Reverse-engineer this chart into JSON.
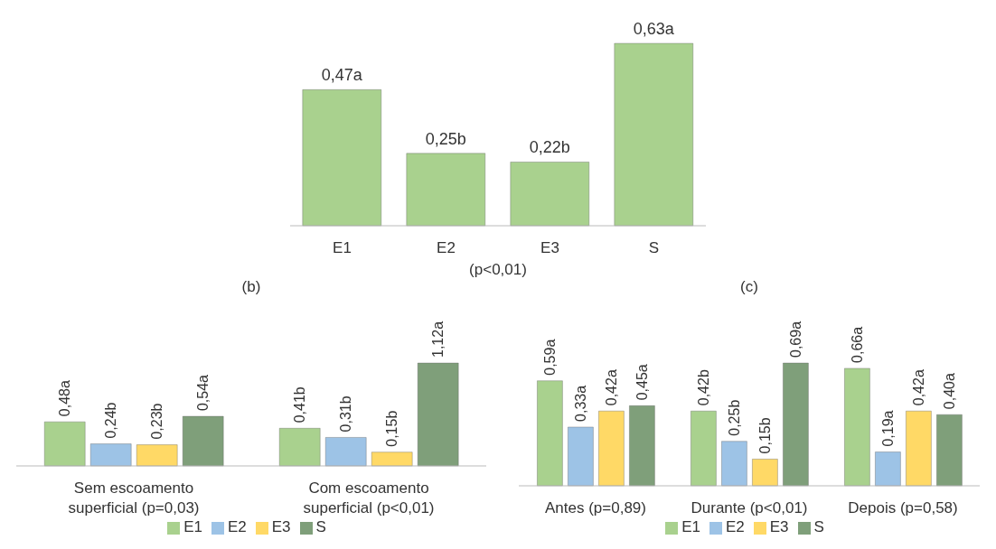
{
  "chart_data": [
    {
      "type": "bar",
      "categories": [
        "E1",
        "E2",
        "E3",
        "S"
      ],
      "xlabel": "(p<0,01)",
      "values": [
        0.47,
        0.25,
        0.22,
        0.63
      ],
      "color": "#a9d18e",
      "value_labels": [
        "0,47a",
        "0,25b",
        "0,22b",
        "0,63a"
      ],
      "legend": false
    },
    {
      "type": "bar",
      "title": "(b)",
      "categories": [
        "Sem escoamento superficial (p=0,03)",
        "Com escoamento superficial (p<0,01)"
      ],
      "legend": "bottom",
      "series": [
        {
          "name": "E1",
          "color": "#a9d18e",
          "values": [
            0.48,
            0.41
          ],
          "value_labels": [
            "0,48a",
            "0,41b"
          ]
        },
        {
          "name": "E2",
          "color": "#9dc3e6",
          "values": [
            0.24,
            0.31
          ],
          "value_labels": [
            "0,24b",
            "0,31b"
          ]
        },
        {
          "name": "E3",
          "color": "#ffd966",
          "values": [
            0.23,
            0.15
          ],
          "value_labels": [
            "0,23b",
            "0,15b"
          ]
        },
        {
          "name": "S",
          "color": "#7f9f7a",
          "values": [
            0.54,
            1.12
          ],
          "value_labels": [
            "0,54a",
            "1,12a"
          ]
        }
      ]
    },
    {
      "type": "bar",
      "title": "(c)",
      "categories": [
        "Antes (p=0,89)",
        "Durante (p<0,01)",
        "Depois (p=0,58)"
      ],
      "legend": "bottom",
      "series": [
        {
          "name": "E1",
          "color": "#a9d18e",
          "values": [
            0.59,
            0.42,
            0.66
          ],
          "value_labels": [
            "0,59a",
            "0,42b",
            "0,66a"
          ]
        },
        {
          "name": "E2",
          "color": "#9dc3e6",
          "values": [
            0.33,
            0.25,
            0.19
          ],
          "value_labels": [
            "0,33a",
            "0,25b",
            "0,19a"
          ]
        },
        {
          "name": "E3",
          "color": "#ffd966",
          "values": [
            0.42,
            0.15,
            0.42
          ],
          "value_labels": [
            "0,42a",
            "0,15b",
            "0,42a"
          ]
        },
        {
          "name": "S",
          "color": "#7f9f7a",
          "values": [
            0.45,
            0.69,
            0.4
          ],
          "value_labels": [
            "0,45a",
            "0,69a",
            "0,40a"
          ]
        }
      ]
    }
  ]
}
